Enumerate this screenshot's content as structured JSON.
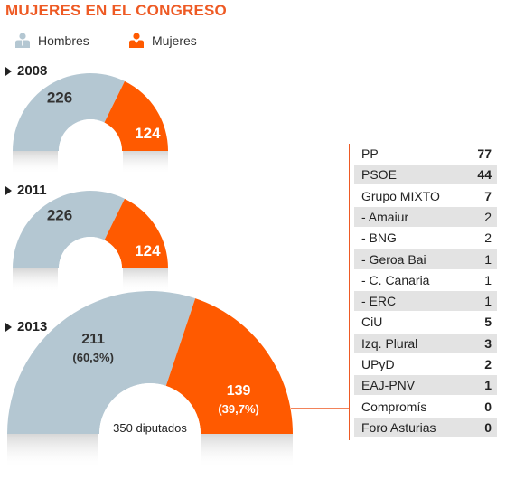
{
  "title": "MUJERES EN EL CONGRESO",
  "legend": [
    {
      "label": "Hombres",
      "color": "#b4c7d2",
      "icon": "man-icon"
    },
    {
      "label": "Mujeres",
      "color": "#ff5a00",
      "icon": "woman-icon"
    }
  ],
  "chart_data": [
    {
      "type": "pie",
      "subtype": "half-donut",
      "title": "2008",
      "categories": [
        "Hombres",
        "Mujeres"
      ],
      "values": [
        226,
        124
      ]
    },
    {
      "type": "pie",
      "subtype": "half-donut",
      "title": "2011",
      "categories": [
        "Hombres",
        "Mujeres"
      ],
      "values": [
        226,
        124
      ]
    },
    {
      "type": "pie",
      "subtype": "half-donut",
      "title": "2013",
      "categories": [
        "Hombres",
        "Mujeres"
      ],
      "values": [
        211,
        139
      ],
      "value_labels": [
        "211",
        "139"
      ],
      "percent_labels": [
        "(60,3%)",
        "(39,7%)"
      ],
      "center_label": "350 diputados"
    },
    {
      "type": "table",
      "title": "",
      "rows": [
        {
          "party": "PP",
          "seats": "77",
          "bold": true
        },
        {
          "party": "PSOE",
          "seats": "44",
          "bold": true
        },
        {
          "party": "Grupo MIXTO",
          "seats": "7",
          "bold": true
        },
        {
          "party": "- Amaiur",
          "seats": "2",
          "bold": false
        },
        {
          "party": "- BNG",
          "seats": "2",
          "bold": false
        },
        {
          "party": "- Geroa Bai",
          "seats": "1",
          "bold": false
        },
        {
          "party": "- C. Canaria",
          "seats": "1",
          "bold": false
        },
        {
          "party": "- ERC",
          "seats": "1",
          "bold": false
        },
        {
          "party": "CiU",
          "seats": "5",
          "bold": true
        },
        {
          "party": "Izq. Plural",
          "seats": "3",
          "bold": true
        },
        {
          "party": "UPyD",
          "seats": "2",
          "bold": true
        },
        {
          "party": "EAJ-PNV",
          "seats": "1",
          "bold": true
        },
        {
          "party": "Compromís",
          "seats": "0",
          "bold": true
        },
        {
          "party": "Foro Asturias",
          "seats": "0",
          "bold": true
        }
      ]
    }
  ]
}
